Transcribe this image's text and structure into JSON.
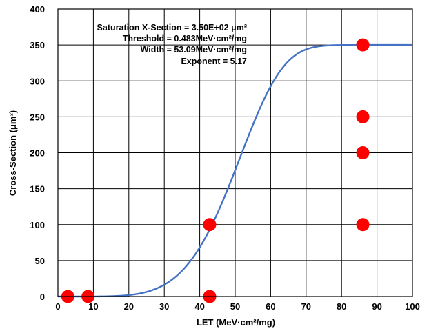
{
  "chart_data": {
    "type": "scatter",
    "xlabel": "LET (MeV·cm²/mg)",
    "ylabel": "Cross-Section (μm²)",
    "xlim": [
      0,
      100
    ],
    "ylim": [
      0,
      400
    ],
    "xticks": [
      "0",
      "10",
      "20",
      "30",
      "40",
      "50",
      "60",
      "70",
      "80",
      "90",
      "100"
    ],
    "yticks": [
      "0",
      "50",
      "100",
      "150",
      "200",
      "250",
      "300",
      "350",
      "400"
    ],
    "grid": true,
    "points": [
      {
        "x": 2.8,
        "y": 0
      },
      {
        "x": 8.5,
        "y": 0
      },
      {
        "x": 42.8,
        "y": 100
      },
      {
        "x": 42.8,
        "y": 0
      },
      {
        "x": 86,
        "y": 350
      },
      {
        "x": 86,
        "y": 250
      },
      {
        "x": 86,
        "y": 200
      },
      {
        "x": 86,
        "y": 100
      }
    ],
    "fit": {
      "model": "weibull",
      "saturation": 350,
      "threshold": 0.483,
      "width": 53.09,
      "exponent": 5.17
    },
    "annotations": [
      "Saturation X-Section = 3.50E+02 μm²",
      "Threshold = 0.483MeV·cm²/mg",
      "Width = 53.09MeV·cm²/mg",
      "Exponent = 5.17"
    ],
    "colors": {
      "points": "#ff0000",
      "fit_line": "#4472c4",
      "grid": "#000000"
    }
  }
}
